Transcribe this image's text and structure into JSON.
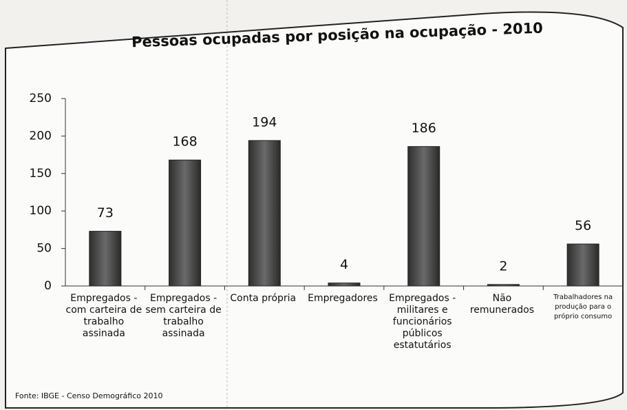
{
  "chart_data": {
    "type": "bar",
    "title": "Pessoas ocupadas por posição na ocupação - 2010",
    "categories": [
      "Empregados - com carteira de trabalho assinada",
      "Empregados - sem carteira de trabalho assinada",
      "Conta própria",
      "Empregadores",
      "Empregados - militares e funcionários públicos estatutários",
      "Não remunerados",
      "Trabalhadores na produção para o próprio consumo"
    ],
    "values": [
      73,
      168,
      194,
      4,
      186,
      2,
      56
    ],
    "color": "#4a4a4a",
    "ylim": [
      0,
      250
    ],
    "yticks": [
      0,
      50,
      100,
      150,
      200,
      250
    ],
    "source": "Fonte: IBGE - Censo Demográfico 2010"
  }
}
